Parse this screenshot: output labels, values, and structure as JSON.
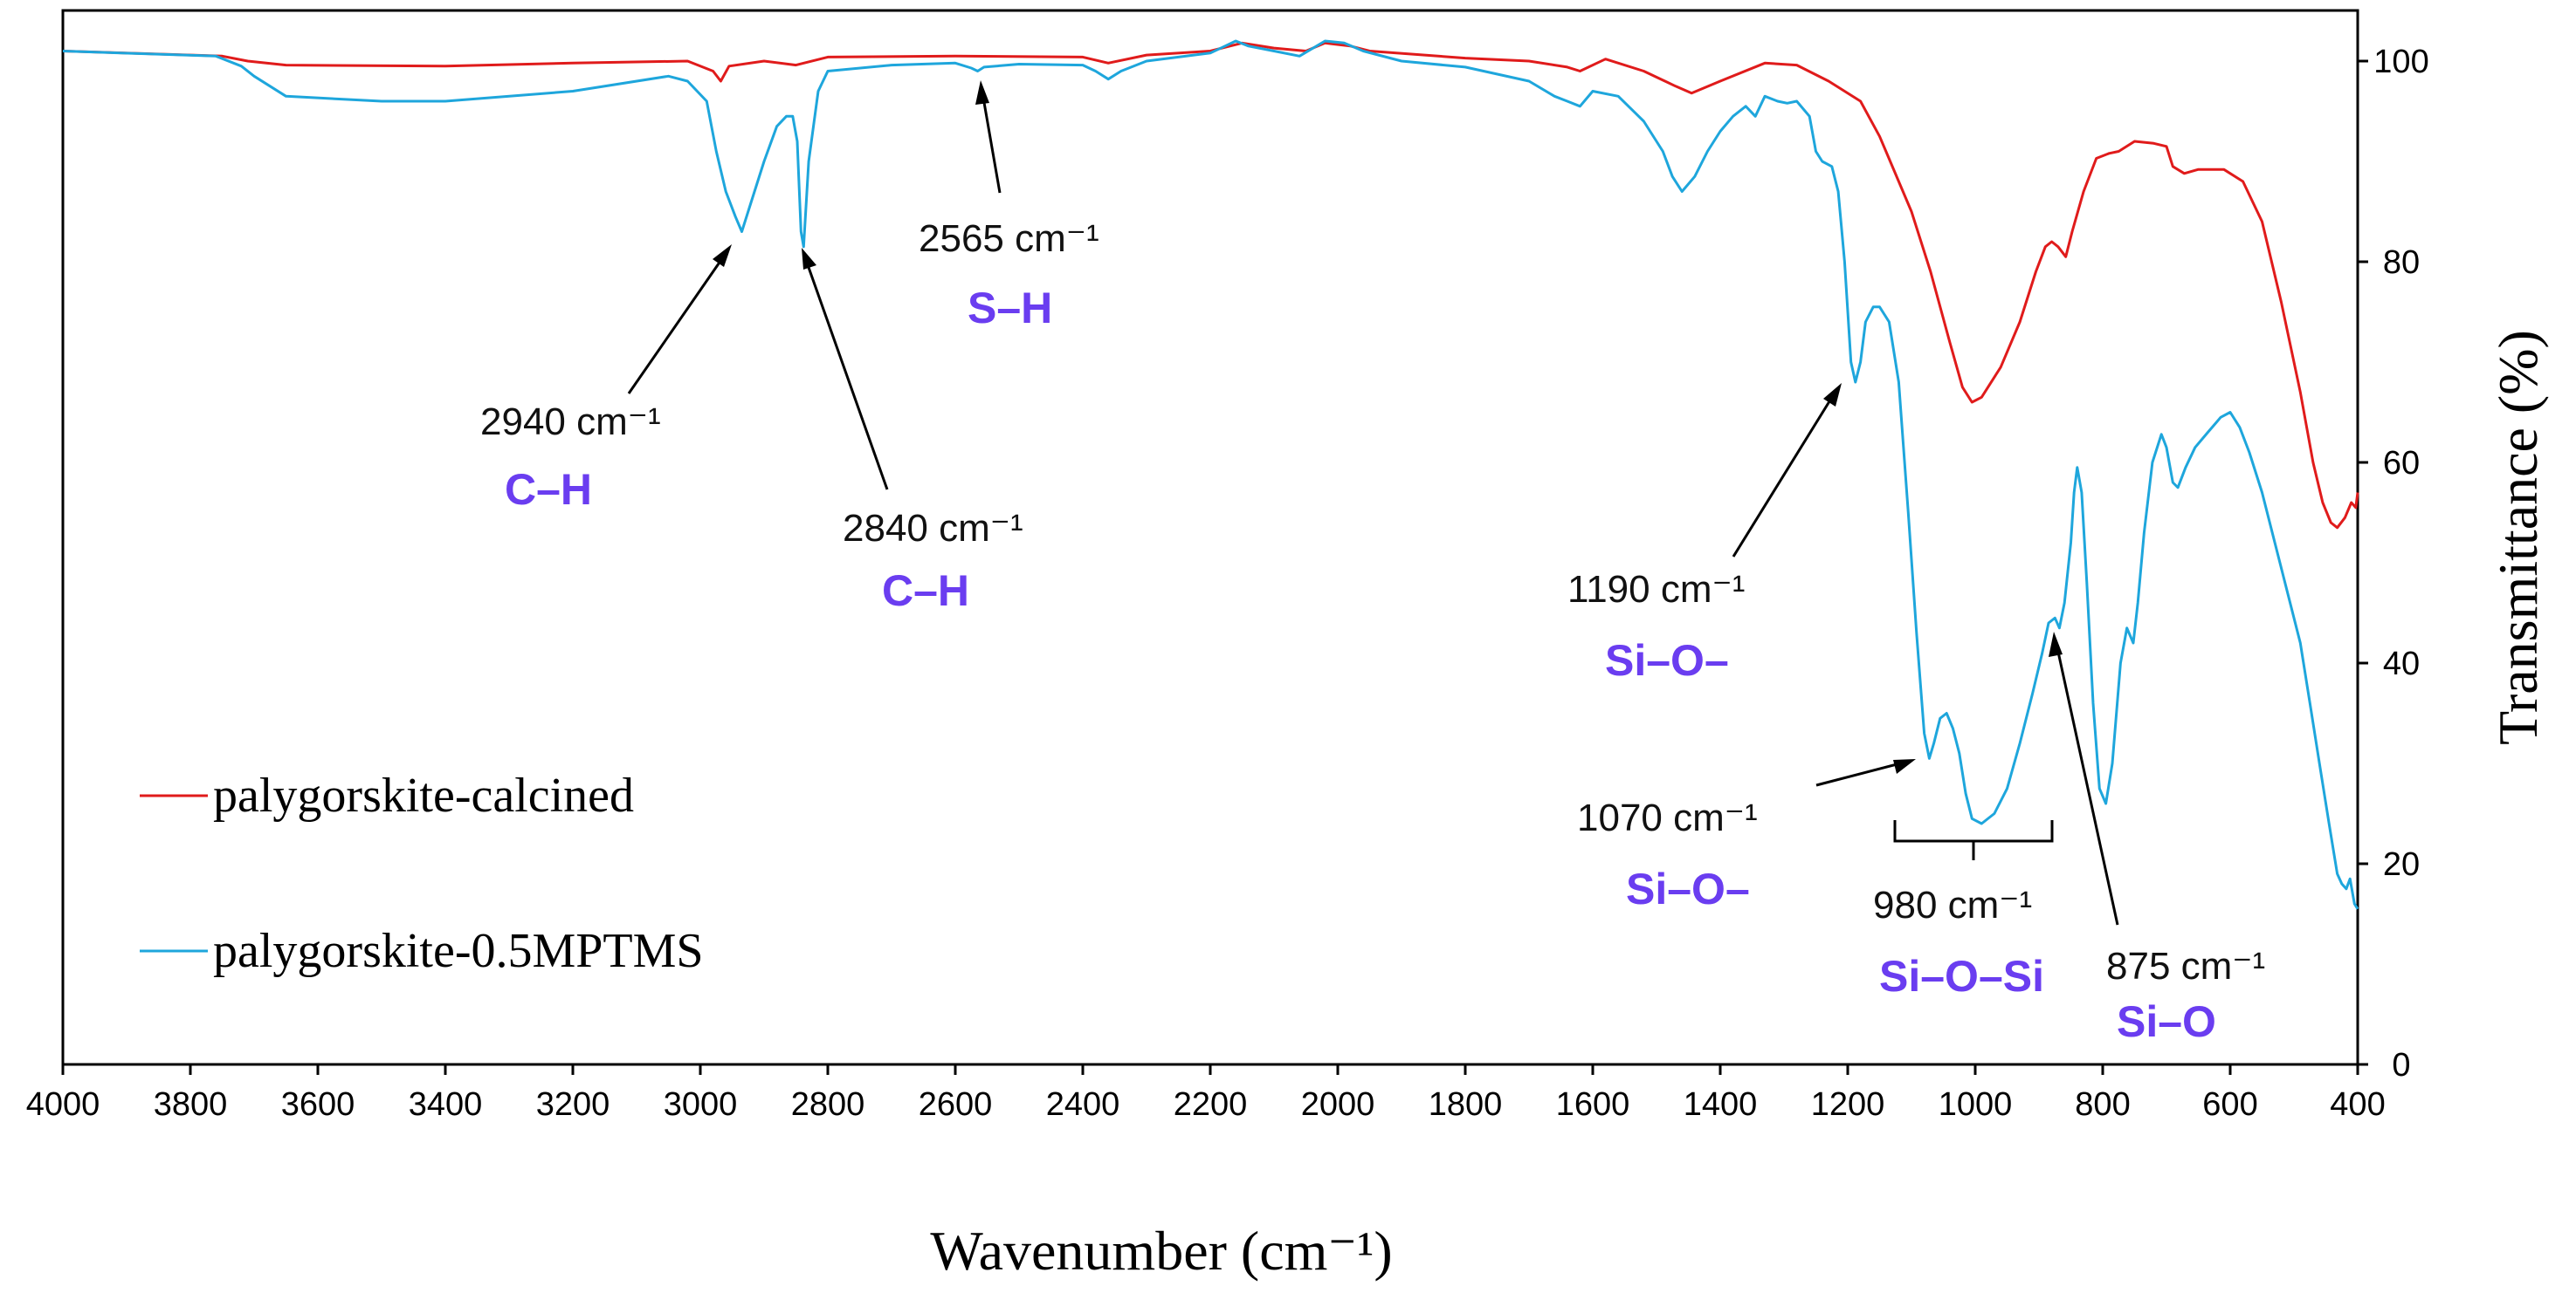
{
  "chart_data": {
    "type": "line",
    "xlabel": "Wavenumber (cm⁻¹)",
    "ylabel": "Transmittance (%)",
    "xlim": [
      4000,
      400
    ],
    "ylim": [
      0,
      100
    ],
    "x_ticks": [
      4000,
      3800,
      3600,
      3400,
      3200,
      3000,
      2800,
      2600,
      2400,
      2200,
      2000,
      1800,
      1600,
      1400,
      1200,
      1000,
      800,
      600,
      400
    ],
    "y_ticks": [
      0,
      20,
      40,
      60,
      80,
      100
    ],
    "legend": [
      "palygorskite-calcined",
      "palygorskite-0.5MPTMS"
    ],
    "series": [
      {
        "name": "palygorskite-calcined",
        "color": "#e01b1b",
        "points": [
          [
            4000,
            101
          ],
          [
            3750,
            100.5
          ],
          [
            3710,
            100
          ],
          [
            3650,
            99.6
          ],
          [
            3400,
            99.5
          ],
          [
            3200,
            99.8
          ],
          [
            3020,
            100
          ],
          [
            2980,
            99
          ],
          [
            2968,
            98
          ],
          [
            2955,
            99.5
          ],
          [
            2900,
            100
          ],
          [
            2850,
            99.6
          ],
          [
            2800,
            100.4
          ],
          [
            2600,
            100.5
          ],
          [
            2400,
            100.4
          ],
          [
            2360,
            99.8
          ],
          [
            2300,
            100.6
          ],
          [
            2200,
            101
          ],
          [
            2150,
            101.8
          ],
          [
            2100,
            101.3
          ],
          [
            2050,
            101
          ],
          [
            2020,
            101.8
          ],
          [
            1980,
            101.5
          ],
          [
            1950,
            101
          ],
          [
            1800,
            100.3
          ],
          [
            1700,
            100
          ],
          [
            1640,
            99.4
          ],
          [
            1620,
            99
          ],
          [
            1580,
            100.2
          ],
          [
            1520,
            99
          ],
          [
            1470,
            97.5
          ],
          [
            1445,
            96.8
          ],
          [
            1400,
            98
          ],
          [
            1330,
            99.8
          ],
          [
            1280,
            99.6
          ],
          [
            1230,
            98
          ],
          [
            1180,
            96
          ],
          [
            1150,
            92.5
          ],
          [
            1100,
            85
          ],
          [
            1070,
            79
          ],
          [
            1040,
            72
          ],
          [
            1020,
            67.5
          ],
          [
            1005,
            66
          ],
          [
            990,
            66.5
          ],
          [
            960,
            69.5
          ],
          [
            930,
            74
          ],
          [
            905,
            79
          ],
          [
            890,
            81.5
          ],
          [
            880,
            82
          ],
          [
            870,
            81.5
          ],
          [
            858,
            80.5
          ],
          [
            848,
            83
          ],
          [
            830,
            87
          ],
          [
            810,
            90.3
          ],
          [
            790,
            90.8
          ],
          [
            775,
            91
          ],
          [
            750,
            92
          ],
          [
            720,
            91.8
          ],
          [
            700,
            91.5
          ],
          [
            690,
            89.5
          ],
          [
            672,
            88.8
          ],
          [
            650,
            89.2
          ],
          [
            610,
            89.2
          ],
          [
            580,
            88
          ],
          [
            550,
            84
          ],
          [
            520,
            76
          ],
          [
            490,
            67
          ],
          [
            470,
            60
          ],
          [
            455,
            56
          ],
          [
            442,
            54
          ],
          [
            432,
            53.5
          ],
          [
            420,
            54.5
          ],
          [
            410,
            56
          ],
          [
            403,
            55.5
          ],
          [
            400,
            57
          ]
        ]
      },
      {
        "name": "palygorskite-0.5MPTMS",
        "color": "#1ea6dc",
        "points": [
          [
            4000,
            101
          ],
          [
            3760,
            100.5
          ],
          [
            3720,
            99.5
          ],
          [
            3700,
            98.5
          ],
          [
            3650,
            96.5
          ],
          [
            3500,
            96
          ],
          [
            3400,
            96
          ],
          [
            3200,
            97
          ],
          [
            3050,
            98.5
          ],
          [
            3020,
            98
          ],
          [
            2990,
            96
          ],
          [
            2975,
            91
          ],
          [
            2960,
            87
          ],
          [
            2945,
            84.5
          ],
          [
            2935,
            83
          ],
          [
            2920,
            86
          ],
          [
            2900,
            90
          ],
          [
            2880,
            93.5
          ],
          [
            2865,
            94.5
          ],
          [
            2855,
            94.5
          ],
          [
            2848,
            92
          ],
          [
            2842,
            83
          ],
          [
            2838,
            81.5
          ],
          [
            2830,
            90
          ],
          [
            2815,
            97
          ],
          [
            2800,
            99
          ],
          [
            2700,
            99.6
          ],
          [
            2600,
            99.8
          ],
          [
            2575,
            99.3
          ],
          [
            2565,
            99
          ],
          [
            2555,
            99.4
          ],
          [
            2500,
            99.7
          ],
          [
            2400,
            99.6
          ],
          [
            2380,
            99
          ],
          [
            2360,
            98.2
          ],
          [
            2340,
            99
          ],
          [
            2300,
            100
          ],
          [
            2200,
            100.8
          ],
          [
            2160,
            102
          ],
          [
            2140,
            101.5
          ],
          [
            2100,
            101
          ],
          [
            2060,
            100.5
          ],
          [
            2020,
            102
          ],
          [
            1990,
            101.8
          ],
          [
            1960,
            101
          ],
          [
            1900,
            100
          ],
          [
            1800,
            99.4
          ],
          [
            1700,
            98
          ],
          [
            1660,
            96.5
          ],
          [
            1640,
            96
          ],
          [
            1620,
            95.5
          ],
          [
            1600,
            97
          ],
          [
            1560,
            96.5
          ],
          [
            1520,
            94
          ],
          [
            1490,
            91
          ],
          [
            1475,
            88.5
          ],
          [
            1460,
            87
          ],
          [
            1440,
            88.5
          ],
          [
            1420,
            91
          ],
          [
            1400,
            93
          ],
          [
            1380,
            94.5
          ],
          [
            1360,
            95.5
          ],
          [
            1345,
            94.5
          ],
          [
            1330,
            96.5
          ],
          [
            1310,
            96
          ],
          [
            1295,
            95.8
          ],
          [
            1280,
            96
          ],
          [
            1260,
            94.5
          ],
          [
            1250,
            91
          ],
          [
            1240,
            90
          ],
          [
            1225,
            89.5
          ],
          [
            1215,
            87
          ],
          [
            1205,
            80
          ],
          [
            1195,
            70
          ],
          [
            1188,
            68
          ],
          [
            1180,
            70
          ],
          [
            1172,
            74
          ],
          [
            1160,
            75.5
          ],
          [
            1150,
            75.5
          ],
          [
            1135,
            74
          ],
          [
            1120,
            68
          ],
          [
            1105,
            55
          ],
          [
            1092,
            43
          ],
          [
            1080,
            33
          ],
          [
            1072,
            30.5
          ],
          [
            1065,
            32
          ],
          [
            1055,
            34.5
          ],
          [
            1045,
            35
          ],
          [
            1035,
            33.5
          ],
          [
            1025,
            31
          ],
          [
            1015,
            27
          ],
          [
            1005,
            24.5
          ],
          [
            990,
            24
          ],
          [
            970,
            25
          ],
          [
            950,
            27.5
          ],
          [
            930,
            32
          ],
          [
            910,
            37
          ],
          [
            895,
            41
          ],
          [
            885,
            44
          ],
          [
            875,
            44.5
          ],
          [
            868,
            43.5
          ],
          [
            860,
            46
          ],
          [
            850,
            52
          ],
          [
            845,
            57
          ],
          [
            840,
            59.5
          ],
          [
            833,
            57
          ],
          [
            825,
            48
          ],
          [
            815,
            36
          ],
          [
            805,
            27.5
          ],
          [
            795,
            26
          ],
          [
            785,
            30
          ],
          [
            772,
            40
          ],
          [
            762,
            43.5
          ],
          [
            752,
            42
          ],
          [
            745,
            46
          ],
          [
            735,
            53
          ],
          [
            722,
            60
          ],
          [
            708,
            62.8
          ],
          [
            700,
            61.5
          ],
          [
            690,
            58
          ],
          [
            682,
            57.5
          ],
          [
            670,
            59.5
          ],
          [
            655,
            61.5
          ],
          [
            635,
            63
          ],
          [
            615,
            64.5
          ],
          [
            600,
            65
          ],
          [
            585,
            63.5
          ],
          [
            570,
            61
          ],
          [
            550,
            57
          ],
          [
            530,
            52
          ],
          [
            510,
            47
          ],
          [
            490,
            42
          ],
          [
            475,
            36
          ],
          [
            460,
            30
          ],
          [
            445,
            24
          ],
          [
            432,
            19
          ],
          [
            425,
            18
          ],
          [
            418,
            17.5
          ],
          [
            412,
            18.5
          ],
          [
            405,
            16
          ],
          [
            400,
            15.5
          ]
        ]
      }
    ],
    "annotations": [
      {
        "label": "2940 cm⁻¹",
        "group": "C–H"
      },
      {
        "label": "2840 cm⁻¹",
        "group": "C–H"
      },
      {
        "label": "2565 cm⁻¹",
        "group": "S–H"
      },
      {
        "label": "1190 cm⁻¹",
        "group": "Si–O–"
      },
      {
        "label": "1070 cm⁻¹",
        "group": "Si–O–"
      },
      {
        "label": "980 cm⁻¹",
        "group": "Si–O–Si"
      },
      {
        "label": "875 cm⁻¹",
        "group": "Si–O"
      }
    ]
  }
}
